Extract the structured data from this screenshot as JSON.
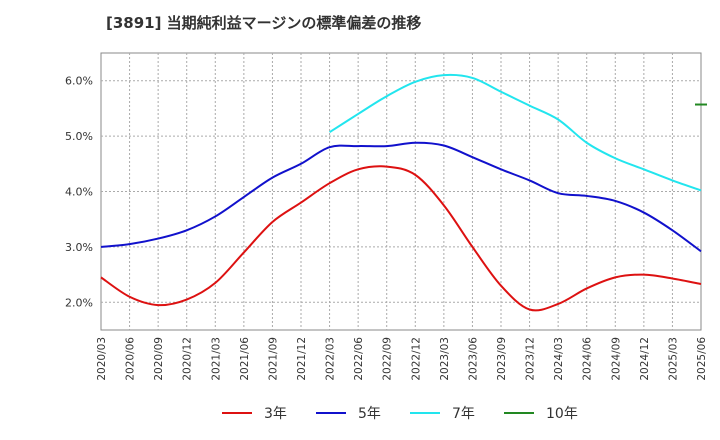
{
  "chart_data": {
    "type": "line",
    "title": "[3891]  当期純利益マージンの標準偏差の推移",
    "xlabel": "",
    "ylabel": "",
    "x": [
      "2020/03",
      "2020/06",
      "2020/09",
      "2020/12",
      "2021/03",
      "2021/06",
      "2021/09",
      "2021/12",
      "2022/03",
      "2022/06",
      "2022/09",
      "2022/12",
      "2023/03",
      "2023/06",
      "2023/09",
      "2023/12",
      "2024/03",
      "2024/06",
      "2024/09",
      "2024/12",
      "2025/03",
      "2025/06"
    ],
    "ylim": [
      1.5,
      6.5
    ],
    "yticks": [
      2.0,
      3.0,
      4.0,
      5.0,
      6.0
    ],
    "ytick_labels": [
      "2.0%",
      "3.0%",
      "4.0%",
      "5.0%",
      "6.0%"
    ],
    "grid": true,
    "legend_position": "bottom",
    "series": [
      {
        "name": "3年",
        "color": "#dd1111",
        "values": [
          2.45,
          2.1,
          1.95,
          2.05,
          2.35,
          2.9,
          3.45,
          3.8,
          4.15,
          4.4,
          4.45,
          4.3,
          3.75,
          3.0,
          2.3,
          1.87,
          1.97,
          2.25,
          2.45,
          2.5,
          2.43,
          2.33
        ]
      },
      {
        "name": "5年",
        "color": "#1111cc",
        "values": [
          3.0,
          3.05,
          3.15,
          3.3,
          3.55,
          3.9,
          4.25,
          4.5,
          4.8,
          4.82,
          4.82,
          4.88,
          4.83,
          4.62,
          4.4,
          4.2,
          3.97,
          3.92,
          3.83,
          3.62,
          3.3,
          2.92
        ]
      },
      {
        "name": "7年",
        "color": "#22e5ee",
        "values": [
          null,
          null,
          null,
          null,
          null,
          null,
          null,
          null,
          5.07,
          5.4,
          5.72,
          5.98,
          6.1,
          6.05,
          5.8,
          5.55,
          5.3,
          4.88,
          4.6,
          4.4,
          4.2,
          4.02
        ]
      },
      {
        "name": "10年",
        "color": "#228822",
        "values": [
          null,
          null,
          null,
          null,
          null,
          null,
          null,
          null,
          null,
          null,
          null,
          null,
          null,
          null,
          null,
          null,
          null,
          null,
          null,
          null,
          null,
          5.57
        ]
      }
    ]
  }
}
